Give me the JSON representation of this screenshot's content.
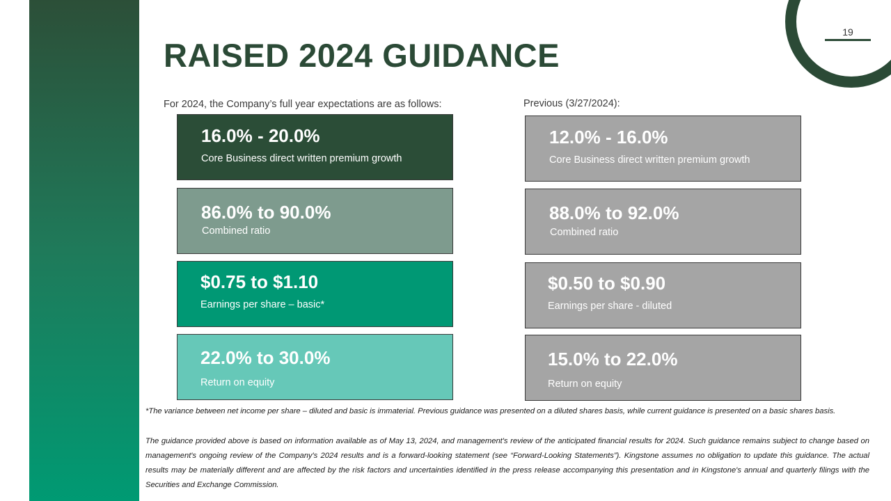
{
  "page": {
    "title": "RAISED 2024 GUIDANCE",
    "page_number": "19"
  },
  "current": {
    "heading": "For 2024, the Company’s full year expectations are as follows:",
    "cards": [
      {
        "value": "16.0% - 20.0%",
        "label": "Core Business direct written premium growth"
      },
      {
        "value": "86.0% to 90.0%",
        "label": "Combined ratio"
      },
      {
        "value": "$0.75 to $1.10",
        "label": "Earnings per share – basic*"
      },
      {
        "value": "22.0% to 30.0%",
        "label": "Return on equity"
      }
    ]
  },
  "previous": {
    "heading": "Previous (3/27/2024):",
    "cards": [
      {
        "value": "12.0% - 16.0%",
        "label": "Core Business direct written premium growth"
      },
      {
        "value": "88.0% to 92.0%",
        "label": "Combined ratio"
      },
      {
        "value": "$0.50 to $0.90",
        "label": "Earnings per share - diluted"
      },
      {
        "value": "15.0% to 22.0%",
        "label": "Return on equity"
      }
    ]
  },
  "footnotes": {
    "variance": "*The variance between net income per share – diluted and basic is immaterial. Previous guidance was presented on a diluted shares basis, while current guidance is presented on a basic shares basis.",
    "disclaimer": "The guidance provided above is based on information available as of May 13, 2024, and management's review of the anticipated financial results for 2024. Such guidance remains subject to change based on management's ongoing review of the Company's 2024 results and is a forward-looking statement (see “Forward-Looking Statements”).   Kingstone assumes no obligation to update this guidance. The actual results may be materially different and are affected by the risk factors and uncertainties identified in the press release accompanying this presentation and in Kingstone's annual and quarterly filings with the Securities and Exchange Commission."
  },
  "colors": {
    "brand_dark_green": "#2b4a36",
    "card_dark": "#2b4d37",
    "card_sage": "#7e9b8e",
    "card_teal": "#009874",
    "card_mint": "#66c8b8",
    "card_grey": "#a5a5a5"
  }
}
